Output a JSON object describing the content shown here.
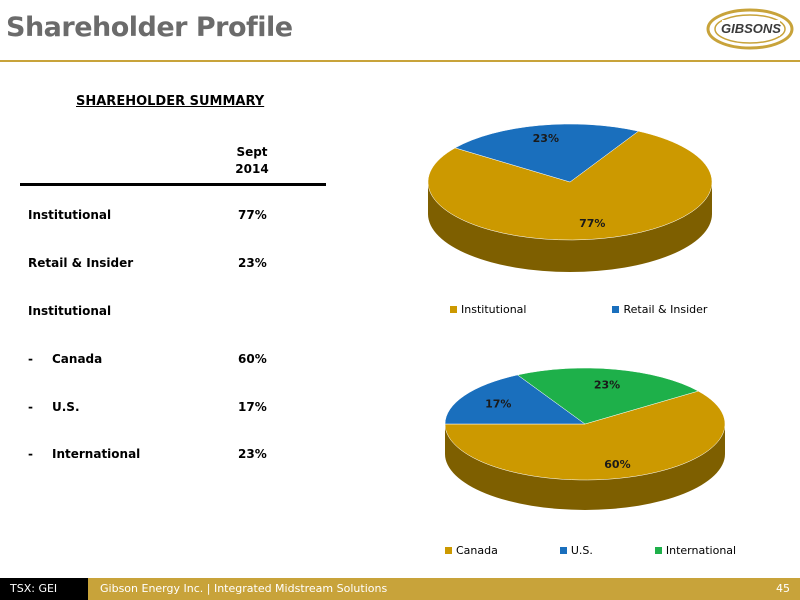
{
  "header": {
    "title": "Shareholder Profile",
    "logo_text": "GIBSONS"
  },
  "summary": {
    "title": "SHAREHOLDER SUMMARY",
    "column_header_line1": "Sept",
    "column_header_line2": "2014",
    "rows": [
      {
        "prefix": "",
        "label": "Institutional",
        "value": "77%"
      },
      {
        "prefix": "",
        "label": "Retail & Insider",
        "value": "23%"
      },
      {
        "prefix": "",
        "label": "Institutional",
        "value": ""
      },
      {
        "prefix": "-",
        "label": "Canada",
        "value": "60%"
      },
      {
        "prefix": "-",
        "label": "U.S.",
        "value": "17%"
      },
      {
        "prefix": "-",
        "label": "International",
        "value": "23%"
      }
    ]
  },
  "chart_data": [
    {
      "type": "pie",
      "title": "",
      "categories": [
        "Institutional",
        "Retail & Insider"
      ],
      "values": [
        77,
        23
      ],
      "data_labels": [
        "77%",
        "23%"
      ],
      "colors": [
        "#cc9900",
        "#1a6fbd"
      ],
      "legend_position": "bottom"
    },
    {
      "type": "pie",
      "title": "",
      "categories": [
        "Canada",
        "U.S.",
        "International"
      ],
      "values": [
        60,
        17,
        23
      ],
      "data_labels": [
        "60%",
        "17%",
        "23%"
      ],
      "colors": [
        "#cc9900",
        "#1a6fbd",
        "#1eb04a"
      ],
      "legend_position": "bottom"
    }
  ],
  "footer": {
    "ticker": "TSX: GEI",
    "text": "Gibson Energy Inc.   |   Integrated Midstream Solutions",
    "page": "45"
  },
  "colors": {
    "accent_gold": "#c8a33a",
    "title_gray": "#6b6b6b"
  }
}
